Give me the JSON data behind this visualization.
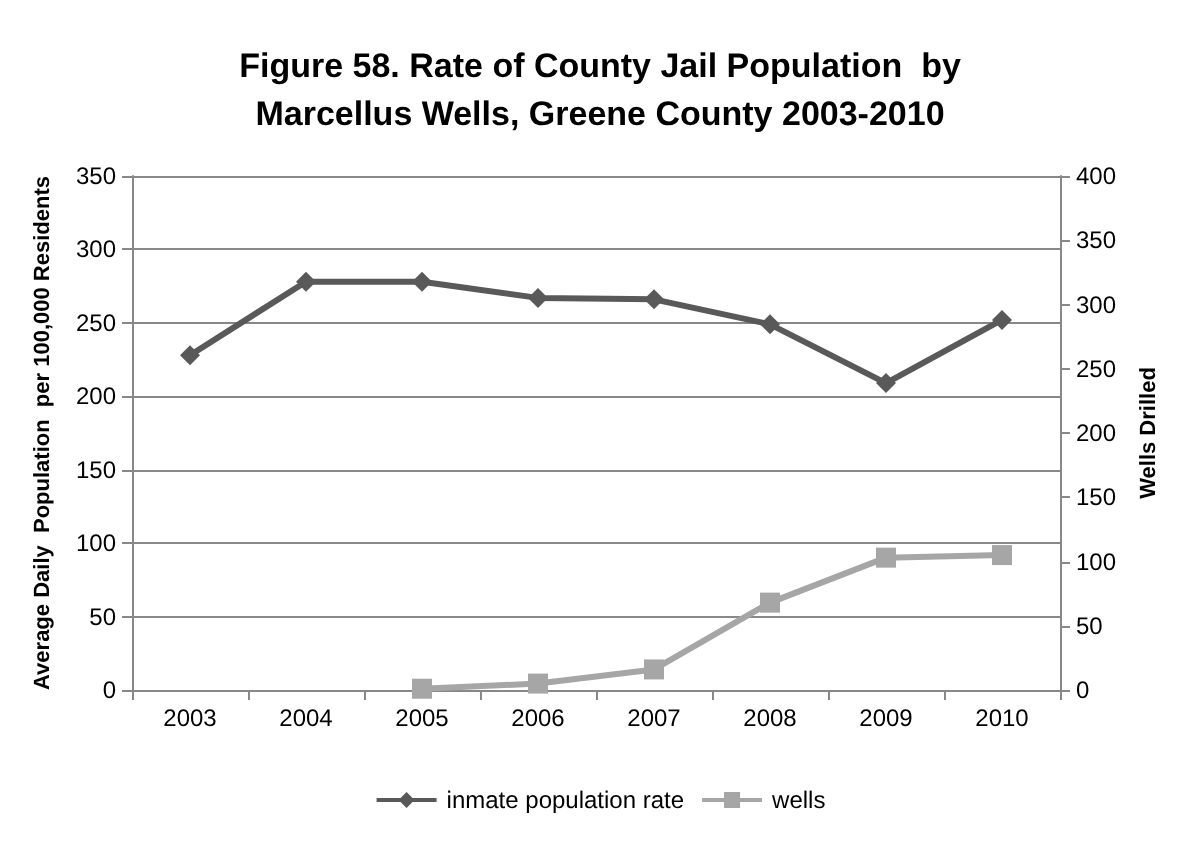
{
  "chart_data": {
    "type": "line",
    "title": "Figure 58. Rate of County Jail Population  by\nMarcellus Wells, Greene County 2003-2010",
    "ylabel": "Average Daily  Population  per 100,000 Residents",
    "y2label": "Wells Drilled",
    "categories": [
      "2003",
      "2004",
      "2005",
      "2006",
      "2007",
      "2008",
      "2009",
      "2010"
    ],
    "series": [
      {
        "name": "inmate population rate",
        "color": "#595959",
        "marker": "diamond",
        "values": [
          228,
          278,
          278,
          267,
          266,
          249,
          209,
          252
        ]
      },
      {
        "name": "wells",
        "color": "#a6a6a6",
        "marker": "square",
        "axis": "y2",
        "values": [
          null,
          null,
          1,
          5,
          16,
          68,
          103,
          105
        ]
      }
    ],
    "ylim": [
      0,
      350
    ],
    "yticks": [
      0,
      50,
      100,
      150,
      200,
      250,
      300,
      350
    ],
    "y2lim": [
      0,
      400
    ],
    "y2ticks": [
      0,
      50,
      100,
      150,
      200,
      250,
      300,
      350,
      400
    ],
    "grid": "y",
    "legend": "bottom"
  }
}
